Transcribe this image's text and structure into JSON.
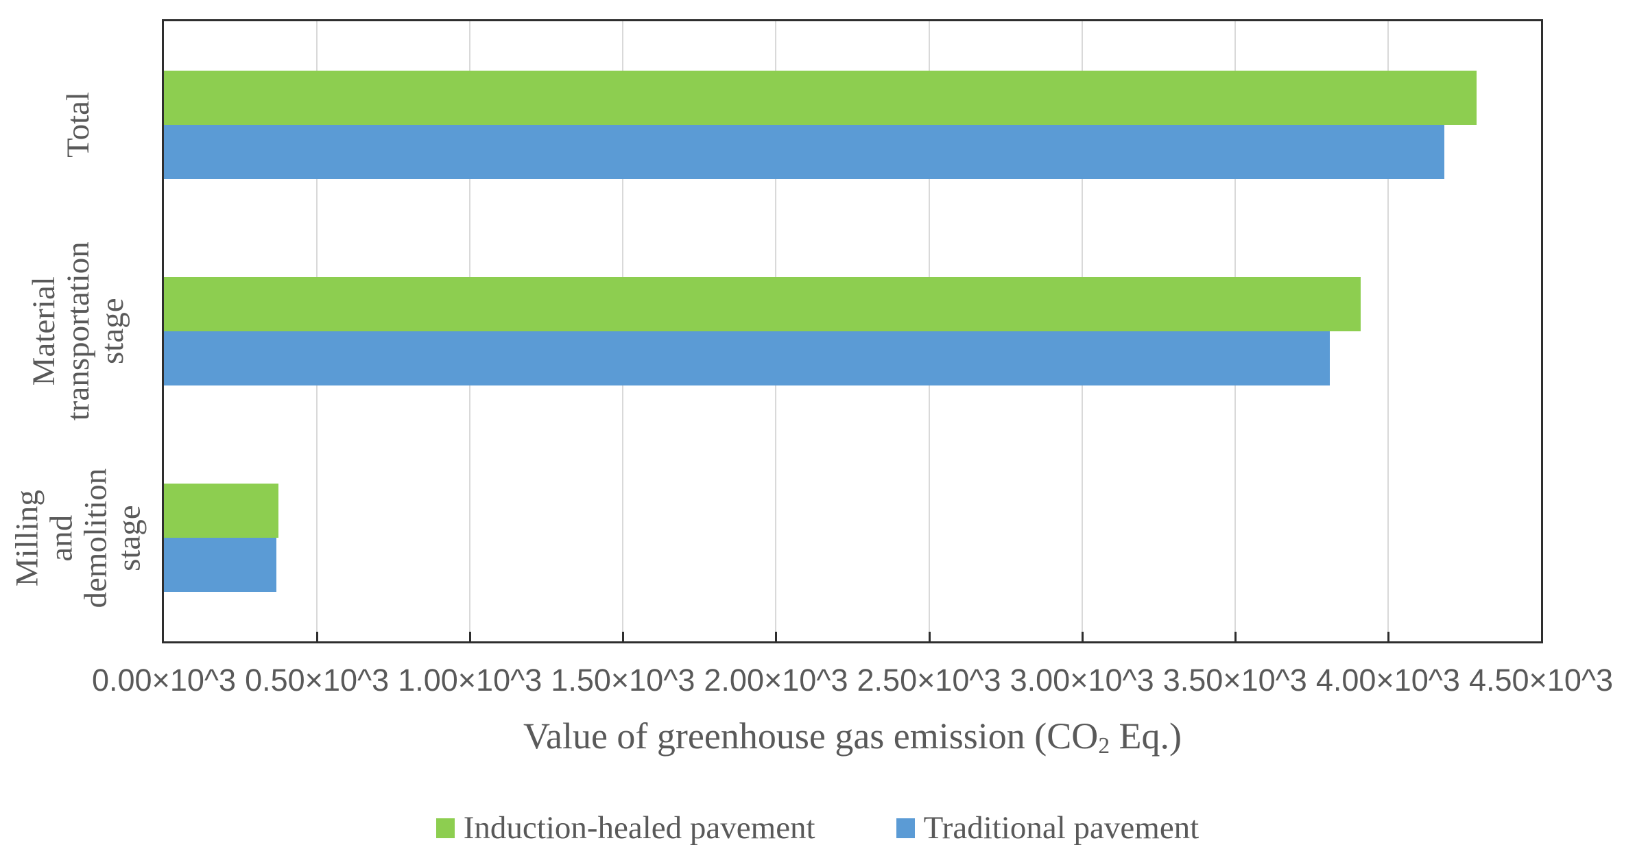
{
  "figure": {
    "background": "#ffffff",
    "text_color": "#595959",
    "border_color": "#2e2e2e",
    "gridline_color": "#d9d9d9"
  },
  "chart_data": {
    "type": "bar",
    "orientation": "horizontal",
    "title": "",
    "xlabel": "Value of greenhouse gas emission (CO2 Eq.)",
    "xlabel_pre": "Value of greenhouse gas emission (CO",
    "xlabel_sub": "2",
    "xlabel_post": " Eq.)",
    "categories": [
      "Total",
      "Material transportation stage",
      "Milling and demolition stage"
    ],
    "category_display_lines": [
      [
        "Total"
      ],
      [
        "Material",
        "transportation",
        "stage"
      ],
      [
        "Milling and",
        "demolition",
        "stage"
      ]
    ],
    "series": [
      {
        "name": "Induction-healed pavement",
        "color": "#8dce50",
        "values": [
          4290,
          3910,
          375
        ]
      },
      {
        "name": "Traditional pavement",
        "color": "#5b9bd5",
        "values": [
          4185,
          3810,
          368
        ]
      }
    ],
    "xlim": [
      0,
      4500
    ],
    "x_tick_step": 500,
    "x_tick_labels": [
      "0.00×10^3",
      "0.50×10^3",
      "1.00×10^3",
      "1.50×10^3",
      "2.00×10^3",
      "2.50×10^3",
      "3.00×10^3",
      "3.50×10^3",
      "4.00×10^3",
      "4.50×10^3"
    ],
    "grid": "vertical",
    "legend_position": "bottom-center"
  }
}
